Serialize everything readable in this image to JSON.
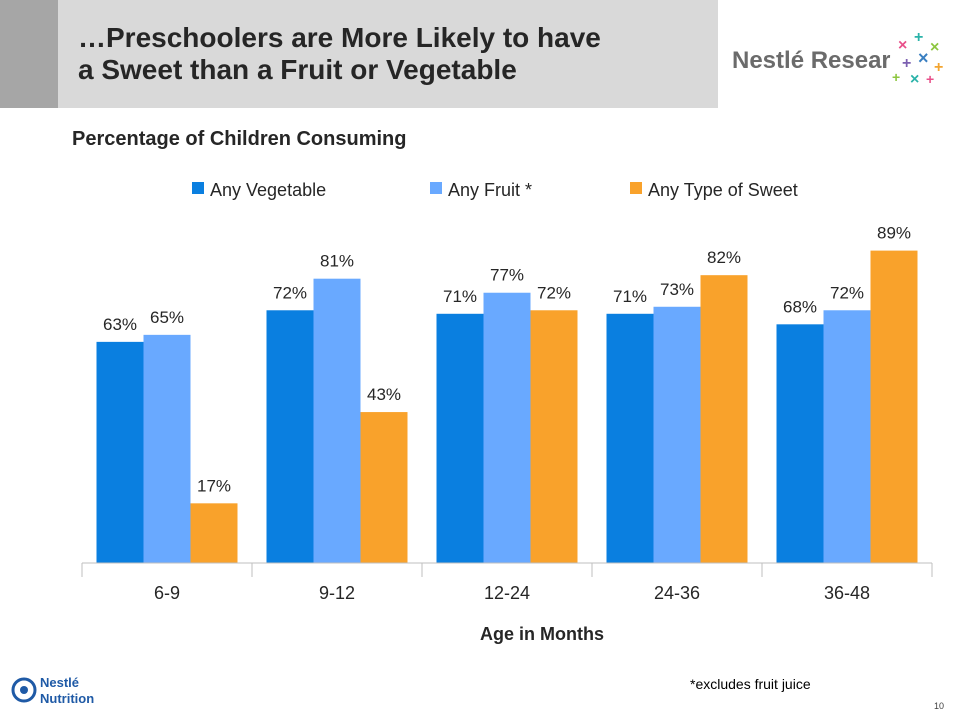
{
  "slide": {
    "title_line1": "…Preschoolers are More Likely to have",
    "title_line2": "a Sweet than a Fruit or Vegetable",
    "brand_logo_text": "Nestlé Research",
    "footer_logo_text_line1": "Nestlé",
    "footer_logo_text_line2": "Nutrition",
    "footnote": "*excludes fruit juice",
    "page_number": "10"
  },
  "chart_data": {
    "type": "bar",
    "title": "Percentage of Children Consuming",
    "xlabel": "Age in Months",
    "ylabel": "",
    "categories": [
      "6-9",
      "9-12",
      "12-24",
      "24-36",
      "36-48"
    ],
    "series": [
      {
        "name": "Any Vegetable",
        "color": "#0a7fe0",
        "values": [
          63,
          72,
          71,
          71,
          68
        ],
        "labels": [
          "63%",
          "72%",
          "71%",
          "71%",
          "68%"
        ]
      },
      {
        "name": "Any Fruit *",
        "color": "#69a9ff",
        "values": [
          65,
          81,
          77,
          73,
          72
        ],
        "labels": [
          "65%",
          "81%",
          "77%",
          "73%",
          "72%"
        ]
      },
      {
        "name": "Any Type of Sweet",
        "color": "#f9a22b",
        "values": [
          17,
          43,
          72,
          82,
          89
        ],
        "labels": [
          "17%",
          "43%",
          "72%",
          "82%",
          "89%"
        ]
      }
    ],
    "ylim": [
      0,
      100
    ],
    "value_axis_visible": false,
    "grid": false,
    "legend": "top"
  }
}
